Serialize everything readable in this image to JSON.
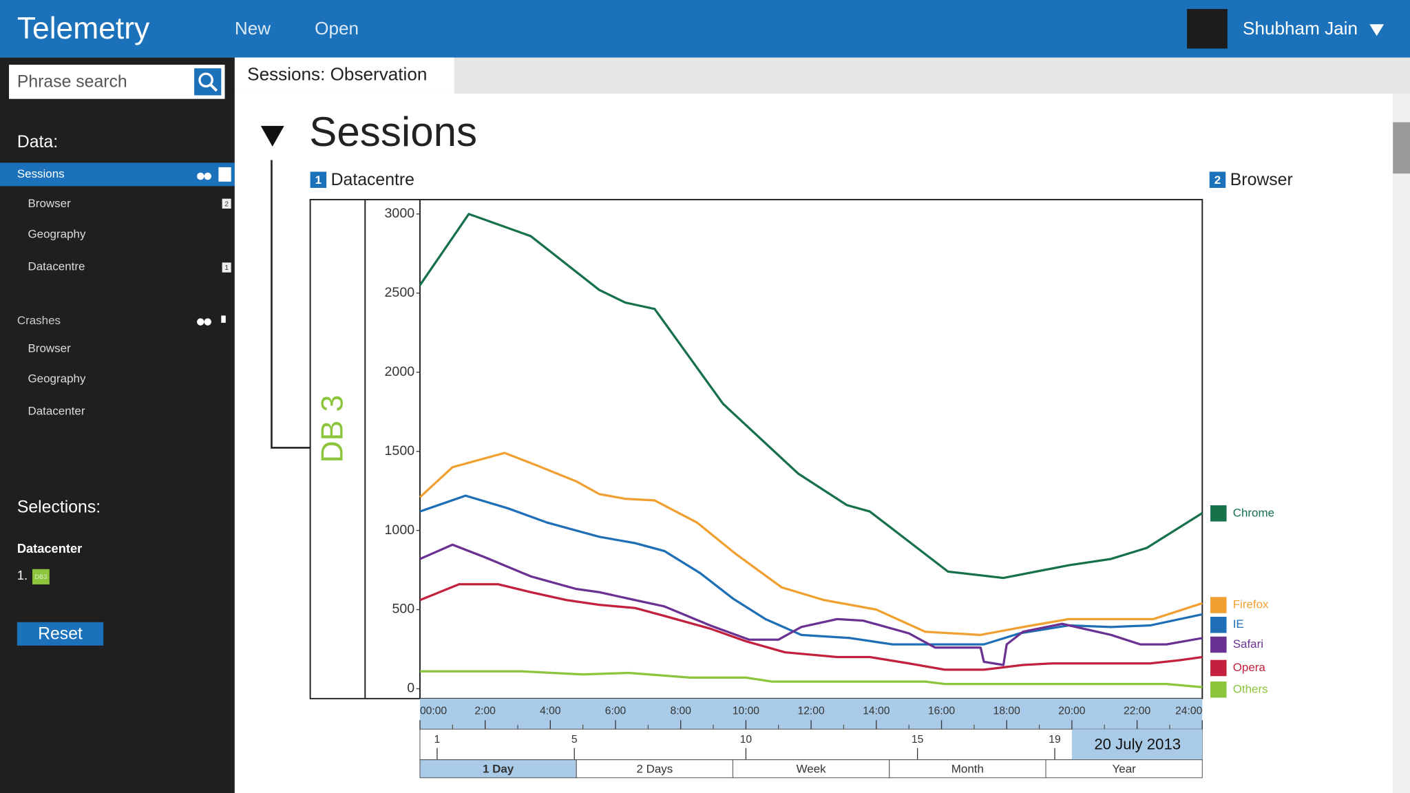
{
  "header": {
    "title": "Telemetry",
    "menu": [
      "New",
      "Open"
    ],
    "user": "Shubham Jain"
  },
  "sidebar": {
    "search_placeholder": "Phrase search",
    "data_heading": "Data:",
    "groups": [
      {
        "name": "Sessions",
        "items": [
          {
            "label": "Browser",
            "badge": "2"
          },
          {
            "label": "Geography"
          },
          {
            "label": "Datacentre",
            "badge": "1"
          }
        ]
      },
      {
        "name": "Crashes",
        "items": [
          {
            "label": "Browser"
          },
          {
            "label": "Geography"
          },
          {
            "label": "Datacenter"
          }
        ]
      }
    ],
    "selections_heading": "Selections:",
    "selection_group": "Datacenter",
    "selection_index": "1.",
    "selection_value": "DB3",
    "reset": "Reset"
  },
  "tab": "Sessions: Observation",
  "heading": "Sessions",
  "left_label": {
    "badge": "1",
    "text": "Datacentre"
  },
  "right_label": {
    "badge": "2",
    "text": "Browser"
  },
  "chart_data": {
    "type": "line",
    "ylabel": "DB 3",
    "ylim": [
      0,
      3000
    ],
    "yticks": [
      0,
      500,
      1000,
      1500,
      2000,
      2500,
      3000
    ],
    "xlim": [
      0,
      24
    ],
    "xticks": [
      {
        "value": 0,
        "label": "00:00"
      },
      {
        "value": 2,
        "label": "2:00"
      },
      {
        "value": 4,
        "label": "4:00"
      },
      {
        "value": 6,
        "label": "6:00"
      },
      {
        "value": 8,
        "label": "8:00"
      },
      {
        "value": 10,
        "label": "10:00"
      },
      {
        "value": 12,
        "label": "12:00"
      },
      {
        "value": 14,
        "label": "14:00"
      },
      {
        "value": 16,
        "label": "16:00"
      },
      {
        "value": 18,
        "label": "18:00"
      },
      {
        "value": 20,
        "label": "20:00"
      },
      {
        "value": 22,
        "label": "22:00"
      },
      {
        "value": 24,
        "label": "24:00"
      }
    ],
    "daylim": [
      0.5,
      23.3
    ],
    "dayticks": [
      1,
      5,
      10,
      15,
      19
    ],
    "date": "20 July 2013",
    "ranges": [
      "1 Day",
      "2 Days",
      "Week",
      "Month",
      "Year"
    ],
    "series": [
      {
        "name": "Chrome",
        "color": "#16704a",
        "x": [
          0,
          1.5,
          3.4,
          5.5,
          6.3,
          7.2,
          9.3,
          11.6,
          13.1,
          13.8,
          16.2,
          17.9,
          19.9,
          21.2,
          22.3,
          24
        ],
        "values": [
          2550,
          3000,
          2860,
          2520,
          2440,
          2400,
          1800,
          1360,
          1160,
          1120,
          740,
          700,
          780,
          820,
          890,
          1110
        ]
      },
      {
        "name": "Firefox",
        "color": "#f0a030",
        "x": [
          0,
          1,
          2.6,
          3.6,
          4.8,
          5.5,
          6.3,
          7.2,
          8.5,
          9.7,
          11.1,
          12.4,
          14,
          15.5,
          17.2,
          18.5,
          19.9,
          21.2,
          22.5,
          24
        ],
        "values": [
          1210,
          1400,
          1490,
          1410,
          1310,
          1230,
          1200,
          1190,
          1050,
          850,
          640,
          560,
          500,
          360,
          340,
          390,
          440,
          440,
          440,
          540
        ]
      },
      {
        "name": "IE",
        "color": "#1e6fb5",
        "x": [
          0,
          1.4,
          2.7,
          3.9,
          5.5,
          6.6,
          7.5,
          8.6,
          9.6,
          10.6,
          11.7,
          13.2,
          14.5,
          15.8,
          17.3,
          18.4,
          19.9,
          21.2,
          22.4,
          24
        ],
        "values": [
          1120,
          1220,
          1140,
          1050,
          960,
          920,
          870,
          730,
          570,
          440,
          340,
          320,
          280,
          280,
          280,
          350,
          400,
          390,
          400,
          470
        ]
      },
      {
        "name": "Safari",
        "color": "#6a3192",
        "x": [
          0,
          1,
          2,
          3.4,
          4.8,
          5.5,
          6.6,
          7.5,
          8.9,
          10.1,
          11,
          11.7,
          12.8,
          13.6,
          15,
          15.8,
          17.2,
          17.3,
          17.9,
          18,
          18.5,
          19.7,
          21.2,
          22.1,
          22.9,
          24
        ],
        "values": [
          820,
          910,
          830,
          710,
          630,
          610,
          560,
          520,
          400,
          310,
          310,
          390,
          440,
          430,
          350,
          260,
          260,
          170,
          150,
          280,
          360,
          410,
          340,
          280,
          280,
          320
        ]
      },
      {
        "name": "Opera",
        "color": "#c2203c",
        "x": [
          0,
          1.2,
          2.4,
          3.4,
          4.5,
          5.5,
          6.6,
          7.5,
          8.9,
          10,
          11.2,
          12.8,
          13.8,
          15,
          16.1,
          17.3,
          18.5,
          19.4,
          21.2,
          22.4,
          23.3,
          24
        ],
        "values": [
          560,
          660,
          660,
          610,
          560,
          530,
          510,
          460,
          380,
          300,
          230,
          200,
          200,
          160,
          120,
          120,
          150,
          160,
          160,
          160,
          180,
          200
        ]
      },
      {
        "name": "Others",
        "color": "#8cc43c",
        "x": [
          0,
          3.1,
          5,
          6.4,
          8.3,
          10,
          10.8,
          15.5,
          16.1,
          22.9,
          24
        ],
        "values": [
          110,
          110,
          90,
          100,
          70,
          70,
          45,
          45,
          30,
          30,
          10
        ]
      }
    ]
  }
}
